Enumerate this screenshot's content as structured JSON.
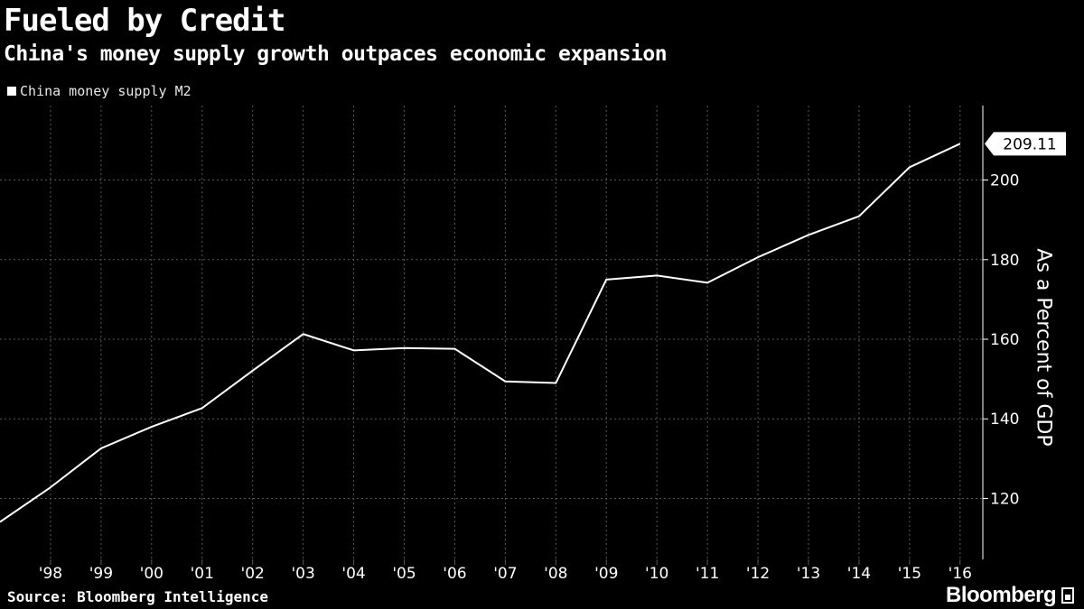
{
  "header": {
    "title": "Fueled by Credit",
    "subtitle": "China's money supply growth outpaces economic expansion"
  },
  "footer": {
    "source": "Source: Bloomberg Intelligence",
    "brand": "Bloomberg"
  },
  "colors": {
    "background": "#000000",
    "line": "#ffffff",
    "grid": "#5a5a5a"
  },
  "chart_data": {
    "type": "line",
    "title": "Fueled by Credit",
    "subtitle": "China's money supply growth outpaces economic expansion",
    "xlabel": "",
    "ylabel": "As a Percent of GDP",
    "legend": {
      "position": "top-left",
      "entries": [
        "China money supply M2"
      ]
    },
    "grid": true,
    "xlim": [
      1997,
      2016.45
    ],
    "ylim": [
      104.7,
      218.7
    ],
    "x_tick_labels": [
      "'98",
      "'99",
      "'00",
      "'01",
      "'02",
      "'03",
      "'04",
      "'05",
      "'06",
      "'07",
      "'08",
      "'09",
      "'10",
      "'11",
      "'12",
      "'13",
      "'14",
      "'15",
      "'16"
    ],
    "x_tick_values": [
      1998,
      1999,
      2000,
      2001,
      2002,
      2003,
      2004,
      2005,
      2006,
      2007,
      2008,
      2009,
      2010,
      2011,
      2012,
      2013,
      2014,
      2015,
      2016
    ],
    "y_ticks": [
      120,
      140,
      160,
      180,
      200
    ],
    "series": [
      {
        "name": "China money supply M2",
        "x": [
          1997,
          1998,
          1999,
          2000,
          2001,
          2002,
          2003,
          2004,
          2005,
          2006,
          2007,
          2008,
          2009,
          2010,
          2011,
          2012,
          2013,
          2014,
          2015,
          2016
        ],
        "values": [
          114.1,
          122.8,
          132.6,
          138.0,
          142.7,
          152.1,
          161.3,
          157.2,
          157.8,
          157.6,
          149.4,
          149.0,
          175.0,
          176.0,
          174.2,
          180.6,
          186.2,
          190.9,
          203.2,
          209.11
        ]
      }
    ],
    "annotations": [
      {
        "label": "209.11",
        "x": 2016,
        "y": 209.11
      }
    ]
  }
}
